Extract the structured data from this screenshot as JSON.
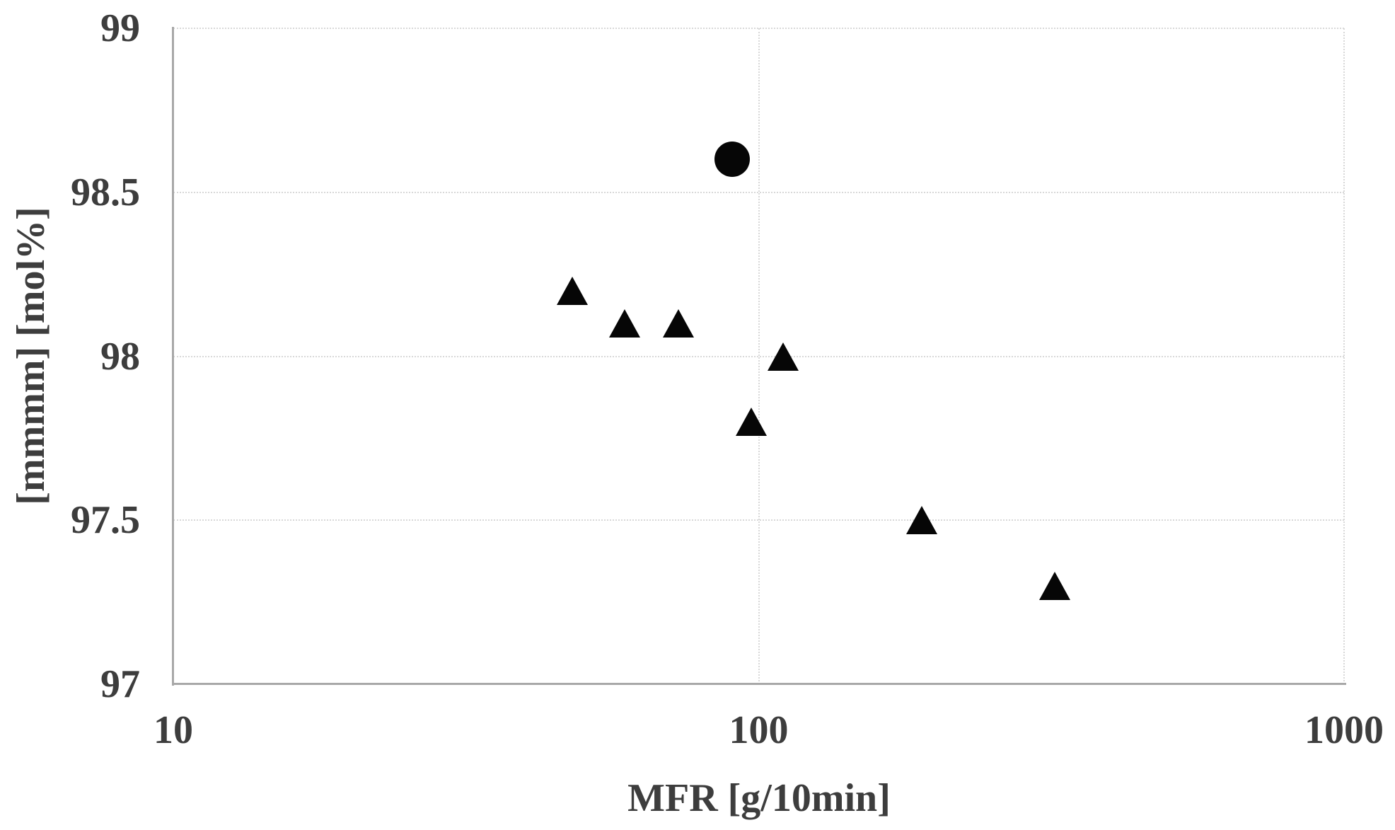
{
  "colors": {
    "marker": "#060606",
    "axis_line": "#a8a8a8",
    "gridline": "#d8d8d8",
    "text": "#3d3d3d",
    "background": "#ffffff"
  },
  "chart_data": {
    "type": "scatter",
    "title": "",
    "xlabel": "MFR [g/10min]",
    "ylabel": "[mmmm] [mol%]",
    "x_scale": "log",
    "y_scale": "linear",
    "xlim": [
      10,
      1000
    ],
    "ylim": [
      97,
      99
    ],
    "grid": "on",
    "legend": "none",
    "x_ticks": [
      {
        "value": 10,
        "label": "10"
      },
      {
        "value": 100,
        "label": "100"
      },
      {
        "value": 1000,
        "label": "1000"
      }
    ],
    "y_ticks": [
      {
        "value": 99,
        "label": "99"
      },
      {
        "value": 98.5,
        "label": "98.5"
      },
      {
        "value": 98,
        "label": "98"
      },
      {
        "value": 97.5,
        "label": "97.5"
      },
      {
        "value": 97,
        "label": "97"
      }
    ],
    "series": [
      {
        "name": "circle-series",
        "marker": "circle",
        "color": "#060606",
        "points": [
          {
            "x": 90,
            "y": 98.6
          }
        ]
      },
      {
        "name": "triangle-series",
        "marker": "triangle",
        "color": "#060606",
        "points": [
          {
            "x": 48,
            "y": 98.2
          },
          {
            "x": 59,
            "y": 98.1
          },
          {
            "x": 73,
            "y": 98.1
          },
          {
            "x": 97,
            "y": 97.8
          },
          {
            "x": 110,
            "y": 98.0
          },
          {
            "x": 190,
            "y": 97.5
          },
          {
            "x": 320,
            "y": 97.3
          }
        ]
      }
    ]
  }
}
